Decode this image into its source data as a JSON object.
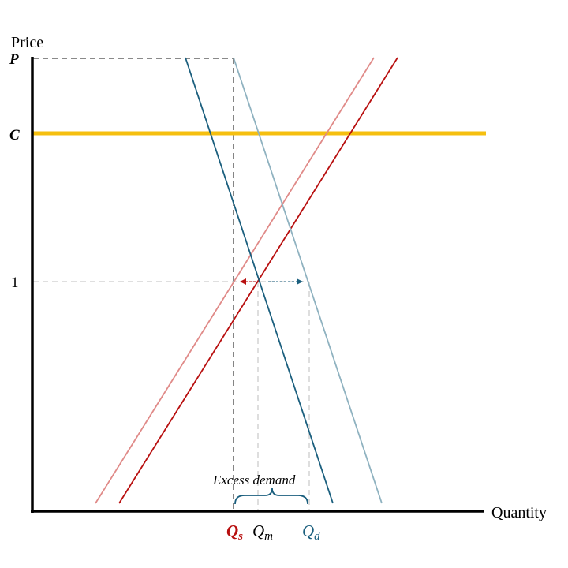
{
  "labels": {
    "y_axis": "Price",
    "x_axis": "Quantity",
    "tick_P": "P",
    "tick_C": "C",
    "tick_1": "1",
    "annotation": "Excess demand",
    "qs_main": "Q",
    "qs_sub": "s",
    "qm_main": "Q",
    "qm_sub": "m",
    "qd_main": "Q",
    "qd_sub": "d"
  },
  "colors": {
    "axis": "#000000",
    "cost_line": "#f5bf0f",
    "demand": "#1b5f7e",
    "demand_shifted": "#8fb2c0",
    "supply": "#b80f0f",
    "supply_shifted": "#e08a88",
    "guide_dark": "#444444",
    "guide_light": "#cccccc",
    "brace": "#1b5f7e",
    "qs_label": "#b80f0f",
    "qd_label": "#1b5f7e"
  }
}
